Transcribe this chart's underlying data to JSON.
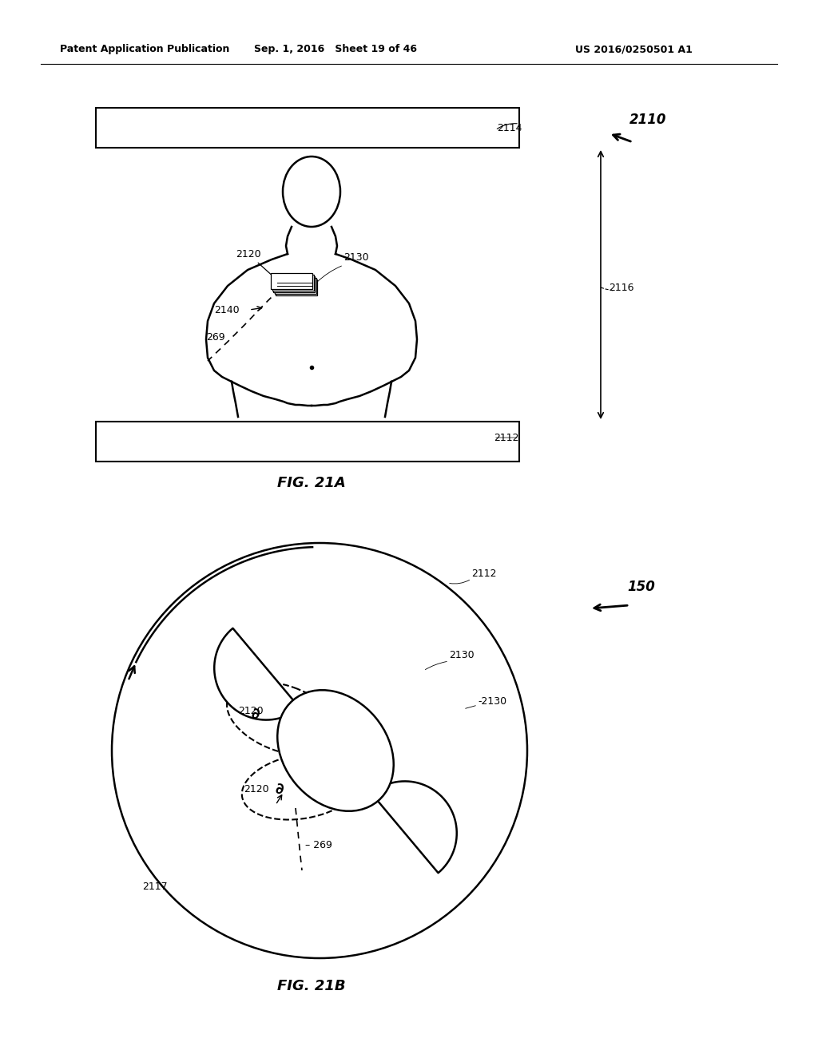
{
  "bg_color": "#ffffff",
  "header_left": "Patent Application Publication",
  "header_mid": "Sep. 1, 2016   Sheet 19 of 46",
  "header_right": "US 2016/0250501 A1",
  "fig_label_A": "FIG. 21A",
  "fig_label_B": "FIG. 21B"
}
